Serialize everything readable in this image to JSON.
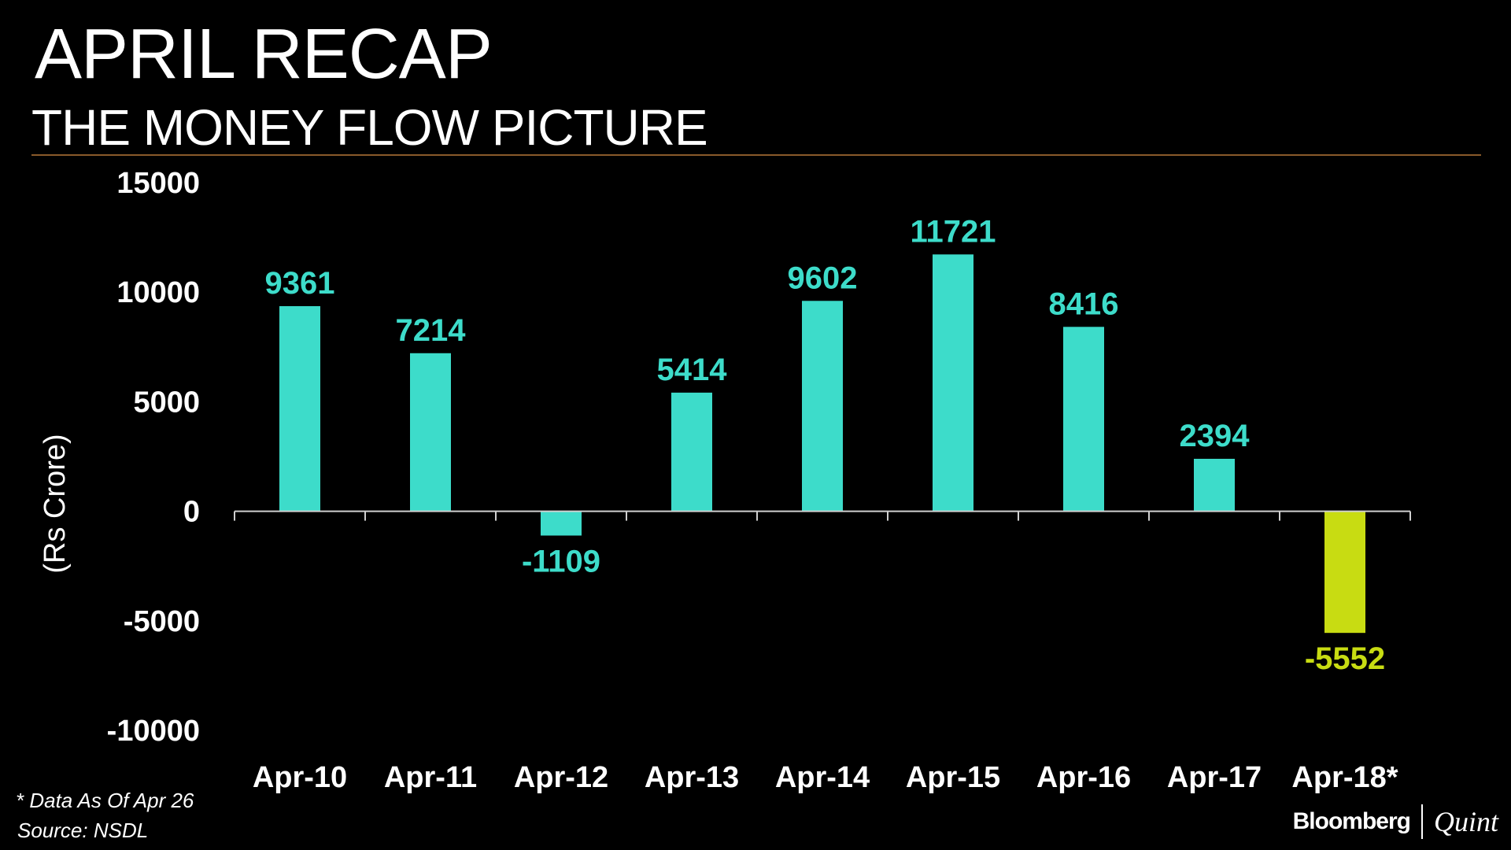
{
  "header": {
    "title": "APRIL RECAP",
    "subtitle": "THE MONEY FLOW PICTURE"
  },
  "footer": {
    "note": "* Data As Of Apr 26",
    "source": "Source: NSDL",
    "brand_left": "Bloomberg",
    "brand_right": "Quint"
  },
  "colors": {
    "background": "#000000",
    "positive_bar": "#3ddcca",
    "highlight_bar": "#c8dc12",
    "text": "#ffffff",
    "rule": "#8a5a2a"
  },
  "chart_data": {
    "type": "bar",
    "title": "APRIL RECAP",
    "subtitle": "THE MONEY FLOW PICTURE",
    "xlabel": "",
    "ylabel": "(Rs Crore)",
    "ylim": [
      -10000,
      15000
    ],
    "yticks": [
      15000,
      10000,
      5000,
      0,
      -5000,
      -10000
    ],
    "grid": false,
    "categories": [
      "Apr-10",
      "Apr-11",
      "Apr-12",
      "Apr-13",
      "Apr-14",
      "Apr-15",
      "Apr-16",
      "Apr-17",
      "Apr-18*"
    ],
    "values": [
      9361,
      7214,
      -1109,
      5414,
      9602,
      11721,
      8416,
      2394,
      -5552
    ],
    "value_labels": [
      "9361",
      "7214",
      "-1109",
      "5414",
      "9602",
      "11721",
      "8416",
      "2394",
      "-5552"
    ],
    "bar_colors": [
      "#3ddcca",
      "#3ddcca",
      "#3ddcca",
      "#3ddcca",
      "#3ddcca",
      "#3ddcca",
      "#3ddcca",
      "#3ddcca",
      "#c8dc12"
    ],
    "label_colors": [
      "#3ddcca",
      "#3ddcca",
      "#3ddcca",
      "#3ddcca",
      "#3ddcca",
      "#3ddcca",
      "#3ddcca",
      "#3ddcca",
      "#c8dc12"
    ]
  }
}
